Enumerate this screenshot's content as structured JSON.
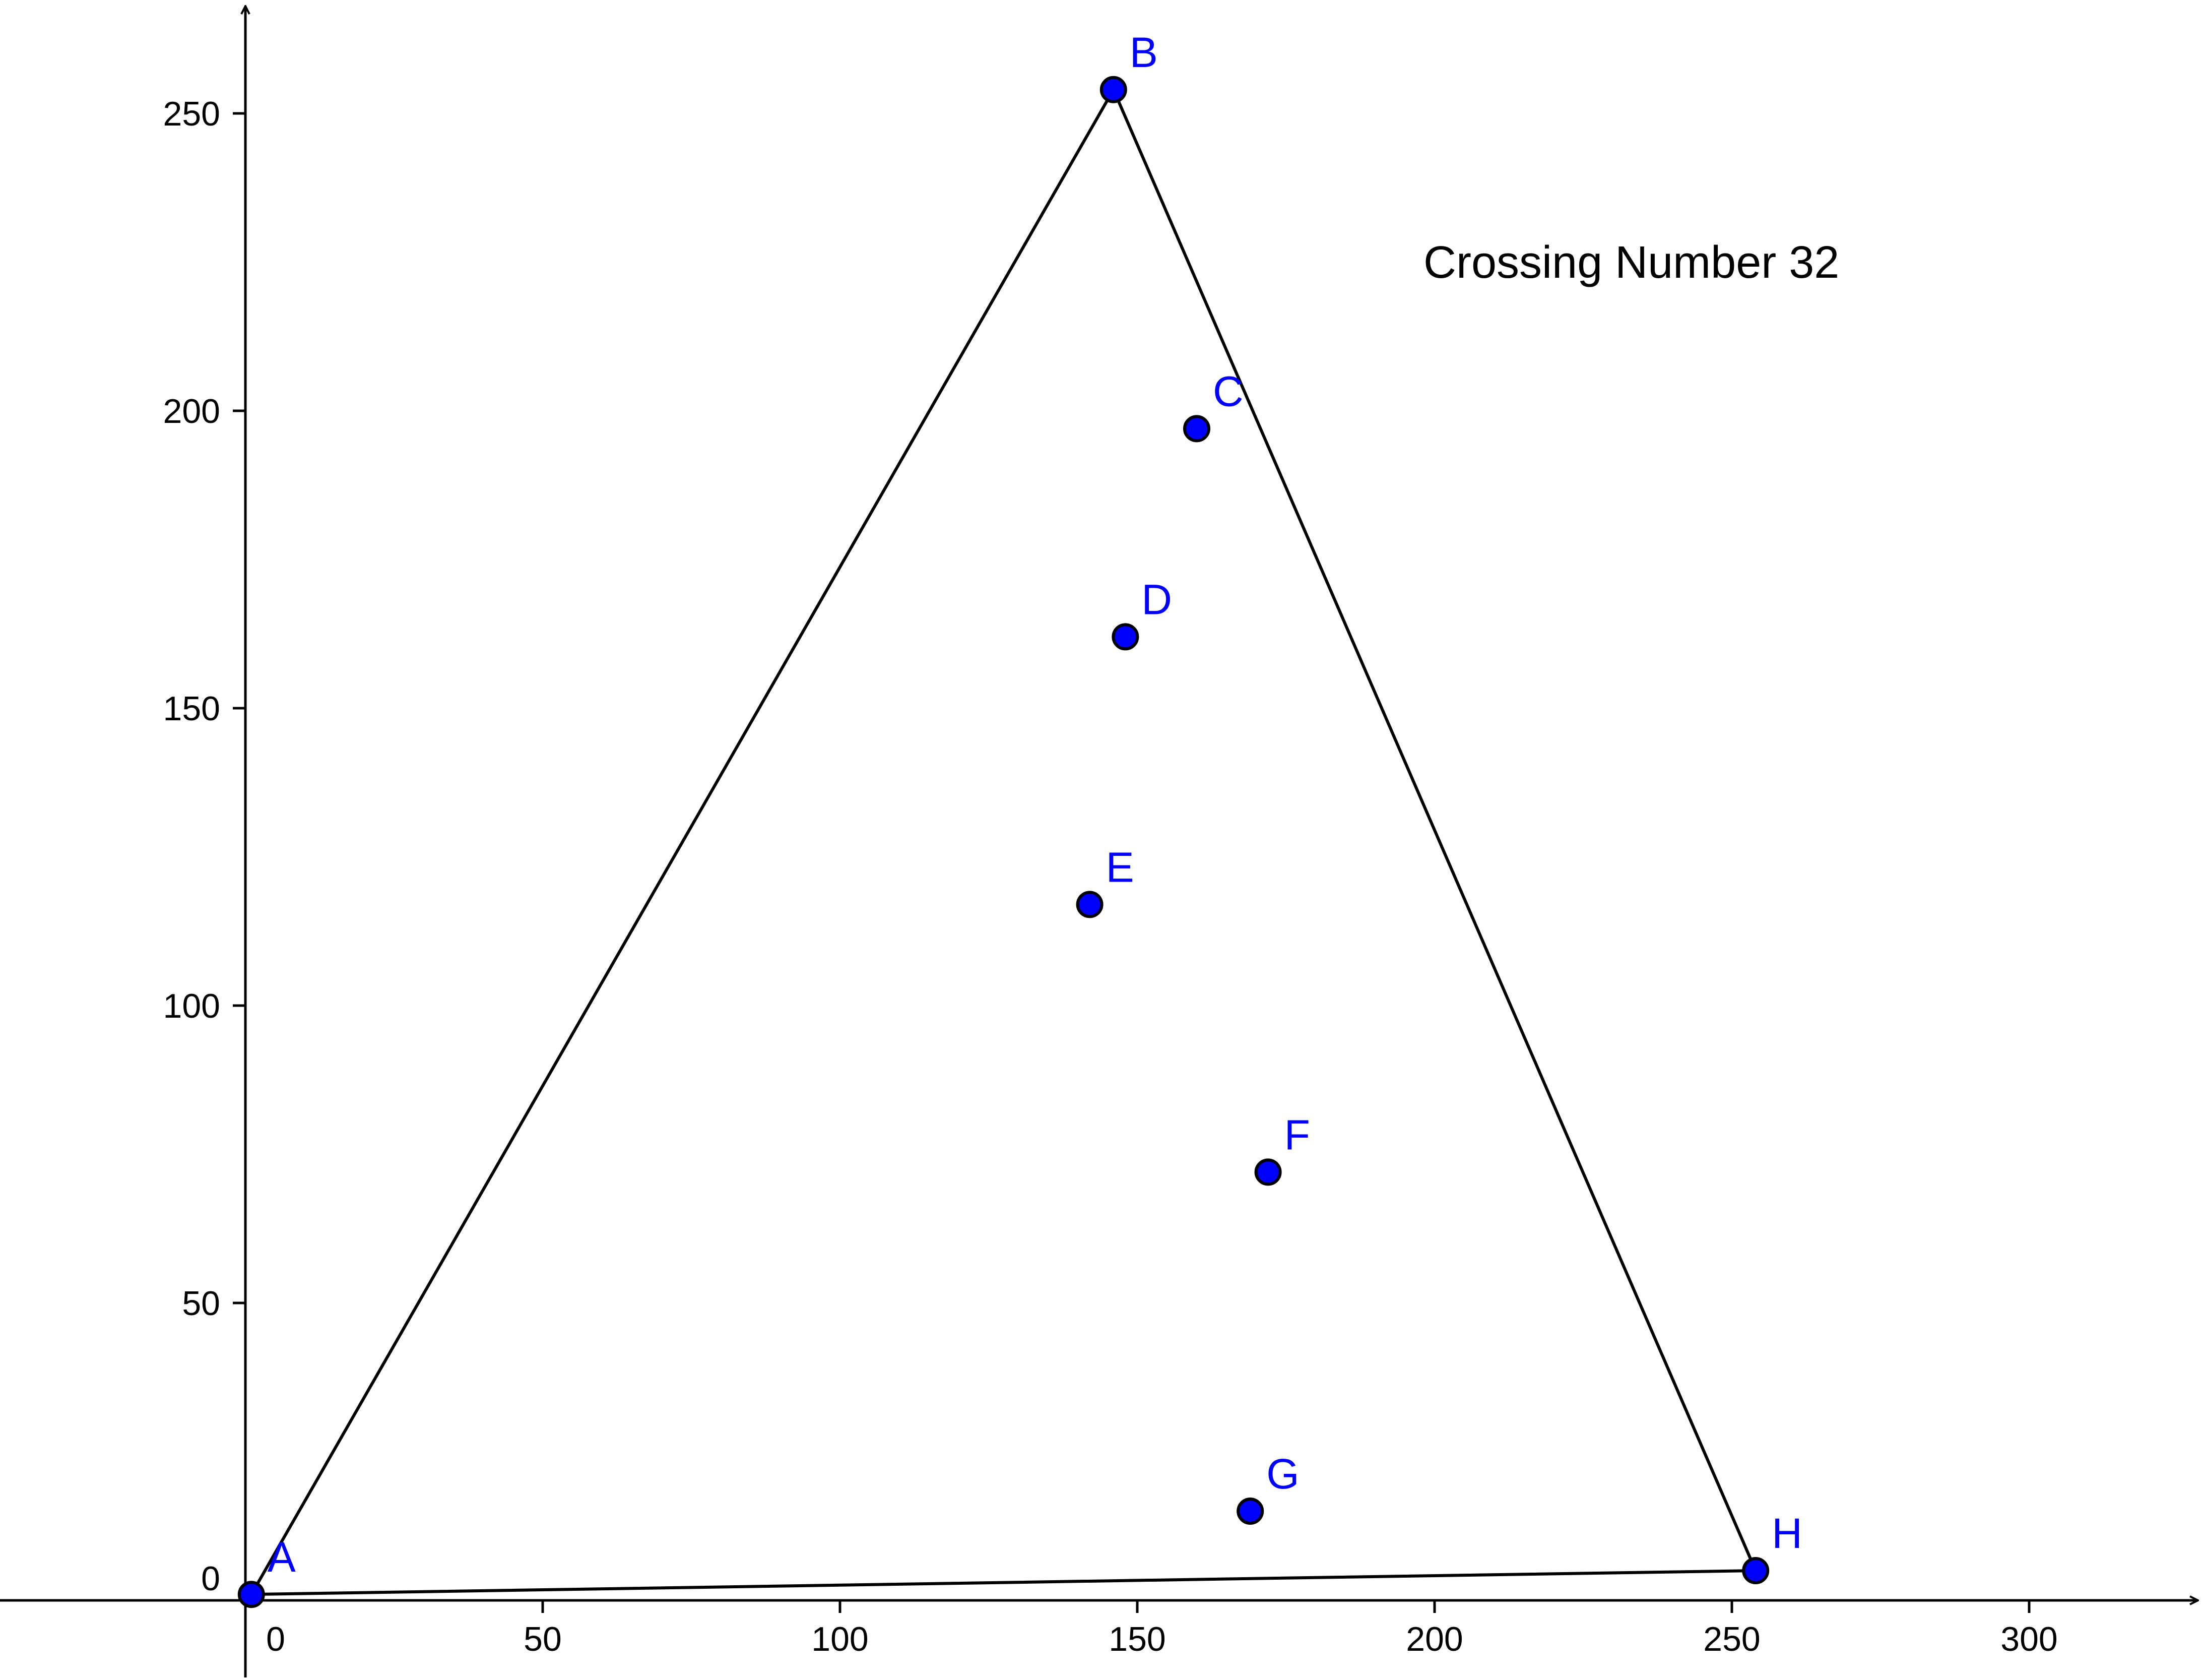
{
  "annotation": "Crossing Number 32",
  "colors": {
    "point_fill": "#0000ff",
    "point_label": "#0000ff",
    "edge": "#000000",
    "axis": "#000000",
    "background": "#ffffff"
  },
  "chart_data": {
    "type": "scatter",
    "x_ticks": [
      0,
      50,
      100,
      150,
      200,
      250,
      300
    ],
    "y_ticks": [
      0,
      50,
      100,
      150,
      200,
      250
    ],
    "x_tick_labels": [
      "0",
      "50",
      "100",
      "150",
      "200",
      "250",
      "300"
    ],
    "y_tick_labels": [
      "0",
      "50",
      "100",
      "150",
      "200",
      "250"
    ],
    "xlim": [
      -41,
      323
    ],
    "ylim": [
      -13,
      268
    ],
    "grid": false,
    "points": [
      {
        "label": "A",
        "x": 1,
        "y": 1
      },
      {
        "label": "B",
        "x": 146,
        "y": 254
      },
      {
        "label": "C",
        "x": 160,
        "y": 197
      },
      {
        "label": "D",
        "x": 148,
        "y": 162
      },
      {
        "label": "E",
        "x": 142,
        "y": 117
      },
      {
        "label": "F",
        "x": 172,
        "y": 72
      },
      {
        "label": "G",
        "x": 169,
        "y": 15
      },
      {
        "label": "H",
        "x": 254,
        "y": 5
      }
    ],
    "polygon": [
      "A",
      "B",
      "H"
    ]
  }
}
